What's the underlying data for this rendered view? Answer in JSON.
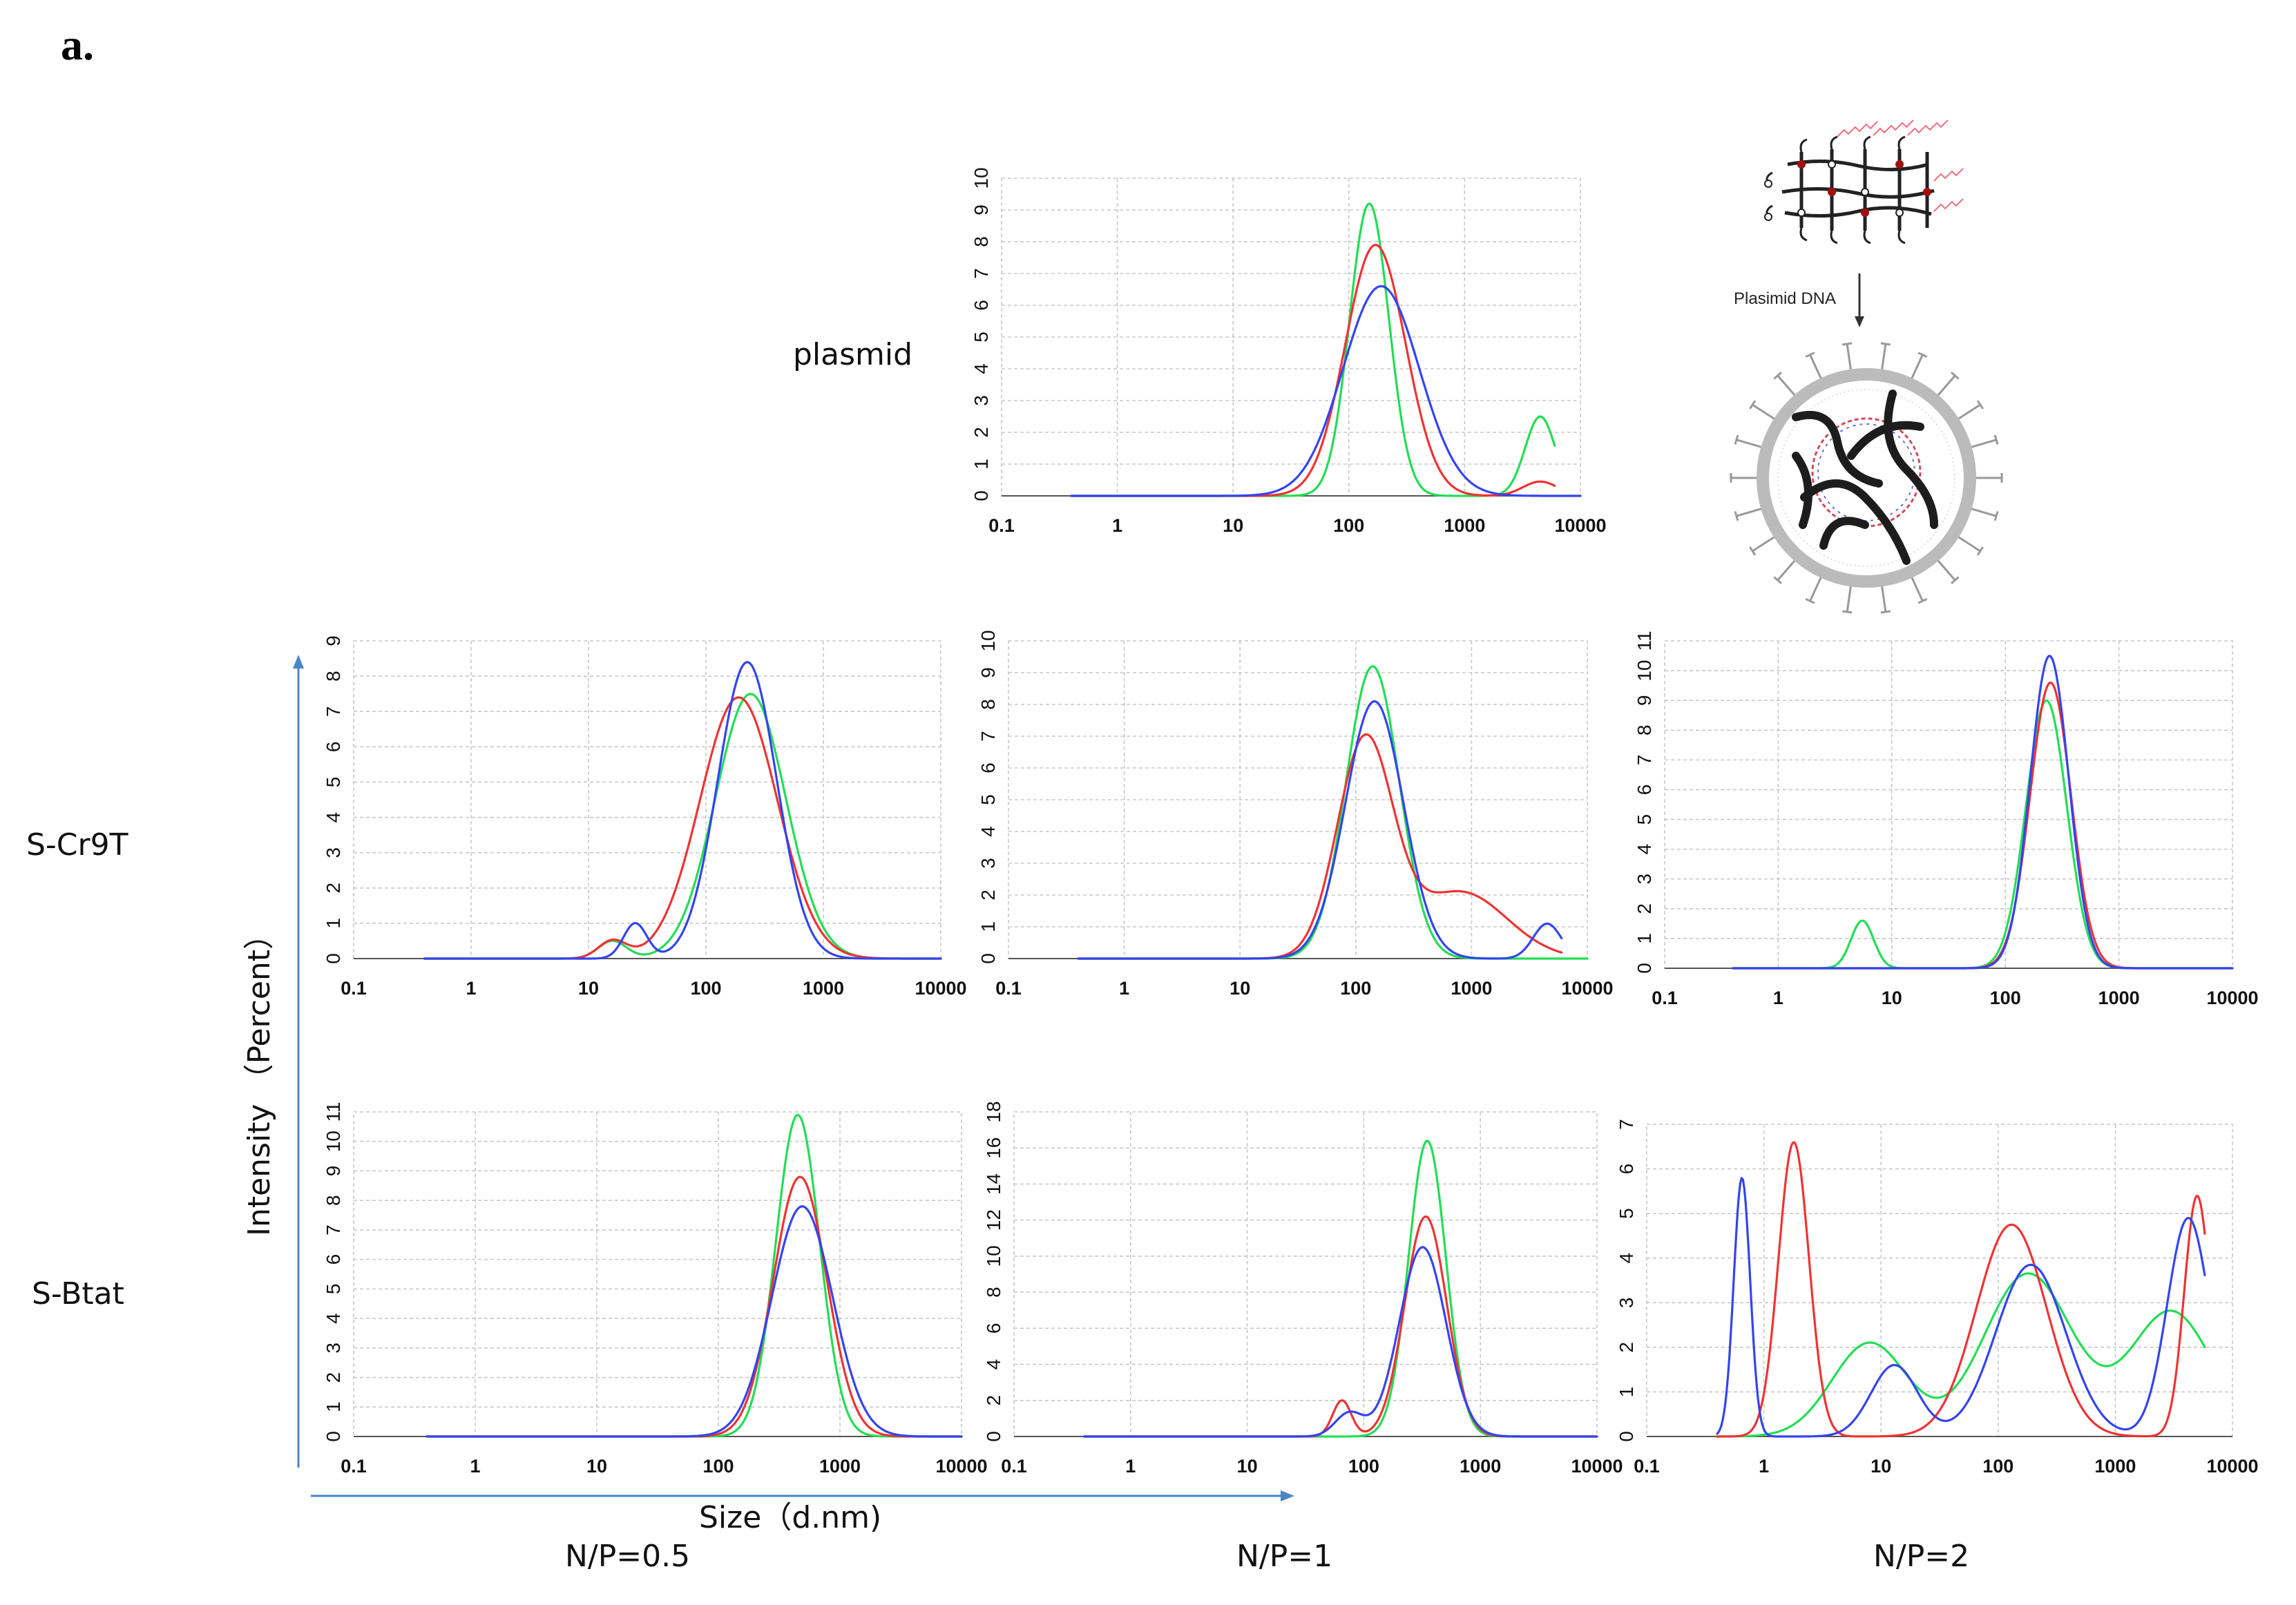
{
  "figure": {
    "panel_letter": "a.",
    "y_axis_title": "Intensity （Percent）",
    "x_axis_title": "Size（d.nm)",
    "row_labels": [
      "plasmid",
      "S-Cr9T",
      "S-Btat"
    ],
    "column_labels": [
      "N/P=0.5",
      "N/P=1",
      "N/P=2"
    ],
    "schematic_label": "Plasimid DNA",
    "series_colors": {
      "green": "#22dd55",
      "red": "#ee3333",
      "blue": "#3344ee"
    }
  },
  "chart_data": [
    {
      "type": "line",
      "name": "plasmid",
      "x_scale": "log",
      "x_ticks": [
        "0.1",
        "1",
        "10",
        "100",
        "1000",
        "10000"
      ],
      "ylim": [
        0,
        10
      ],
      "y_ticks": [
        "0",
        "1",
        "2",
        "3",
        "4",
        "5",
        "6",
        "7",
        "8",
        "9",
        "10"
      ],
      "series": [
        {
          "name": "green",
          "color": "#22dd55",
          "peaks": [
            {
              "center": 150,
              "height": 9.2,
              "sigma": 0.17
            },
            {
              "center": 4500,
              "height": 2.5,
              "sigma": 0.13
            }
          ],
          "x_range": [
            0.4,
            6000
          ]
        },
        {
          "name": "red",
          "color": "#ee3333",
          "peaks": [
            {
              "center": 170,
              "height": 7.9,
              "sigma": 0.26
            },
            {
              "center": 4500,
              "height": 0.45,
              "sigma": 0.15
            }
          ],
          "x_range": [
            0.4,
            6000
          ]
        },
        {
          "name": "blue",
          "color": "#3344ee",
          "peaks": [
            {
              "center": 190,
              "height": 6.6,
              "sigma": 0.33
            }
          ],
          "x_range": [
            0.4,
            10000
          ]
        }
      ]
    },
    {
      "type": "line",
      "name": "S-Cr9T N/P=0.5",
      "x_scale": "log",
      "x_ticks": [
        "0.1",
        "1",
        "10",
        "100",
        "1000",
        "10000"
      ],
      "ylim": [
        0,
        9
      ],
      "y_ticks": [
        "0",
        "1",
        "2",
        "3",
        "4",
        "5",
        "6",
        "7",
        "8",
        "9"
      ],
      "series": [
        {
          "name": "green",
          "color": "#22dd55",
          "peaks": [
            {
              "center": 16,
              "height": 0.5,
              "sigma": 0.12
            },
            {
              "center": 240,
              "height": 7.5,
              "sigma": 0.3
            }
          ],
          "x_range": [
            0.4,
            10000
          ]
        },
        {
          "name": "red",
          "color": "#ee3333",
          "peaks": [
            {
              "center": 16,
              "height": 0.5,
              "sigma": 0.12
            },
            {
              "center": 190,
              "height": 7.4,
              "sigma": 0.33
            }
          ],
          "x_range": [
            0.4,
            10000
          ]
        },
        {
          "name": "blue",
          "color": "#3344ee",
          "peaks": [
            {
              "center": 25,
              "height": 1.0,
              "sigma": 0.1
            },
            {
              "center": 225,
              "height": 8.4,
              "sigma": 0.25
            }
          ],
          "x_range": [
            0.4,
            10000
          ]
        }
      ]
    },
    {
      "type": "line",
      "name": "S-Cr9T N/P=1",
      "x_scale": "log",
      "x_ticks": [
        "0.1",
        "1",
        "10",
        "100",
        "1000",
        "10000"
      ],
      "ylim": [
        0,
        10
      ],
      "y_ticks": [
        "0",
        "1",
        "2",
        "3",
        "4",
        "5",
        "6",
        "7",
        "8",
        "9",
        "10"
      ],
      "series": [
        {
          "name": "green",
          "color": "#22dd55",
          "peaks": [
            {
              "center": 140,
              "height": 9.2,
              "sigma": 0.23
            }
          ],
          "x_range": [
            0.4,
            10000
          ]
        },
        {
          "name": "red",
          "color": "#ee3333",
          "peaks": [
            {
              "center": 120,
              "height": 6.8,
              "sigma": 0.24
            },
            {
              "center": 800,
              "height": 2.1,
              "sigma": 0.4
            }
          ],
          "x_range": [
            0.4,
            6000
          ]
        },
        {
          "name": "blue",
          "color": "#3344ee",
          "peaks": [
            {
              "center": 145,
              "height": 8.1,
              "sigma": 0.25
            },
            {
              "center": 4500,
              "height": 1.1,
              "sigma": 0.12
            }
          ],
          "x_range": [
            0.4,
            6000
          ]
        }
      ]
    },
    {
      "type": "line",
      "name": "S-Cr9T N/P=2",
      "x_scale": "log",
      "x_ticks": [
        "0.1",
        "1",
        "10",
        "100",
        "1000",
        "10000"
      ],
      "ylim": [
        0,
        11
      ],
      "y_ticks": [
        "0",
        "1",
        "2",
        "3",
        "4",
        "5",
        "6",
        "7",
        "8",
        "9",
        "10",
        "11"
      ],
      "series": [
        {
          "name": "green",
          "color": "#22dd55",
          "peaks": [
            {
              "center": 5.5,
              "height": 1.6,
              "sigma": 0.1
            },
            {
              "center": 230,
              "height": 9.0,
              "sigma": 0.18
            }
          ],
          "x_range": [
            0.4,
            10000
          ]
        },
        {
          "name": "red",
          "color": "#ee3333",
          "peaks": [
            {
              "center": 250,
              "height": 9.6,
              "sigma": 0.18
            }
          ],
          "x_range": [
            0.4,
            10000
          ]
        },
        {
          "name": "blue",
          "color": "#3344ee",
          "peaks": [
            {
              "center": 245,
              "height": 10.5,
              "sigma": 0.17
            }
          ],
          "x_range": [
            0.4,
            10000
          ]
        }
      ]
    },
    {
      "type": "line",
      "name": "S-Btat N/P=0.5",
      "x_scale": "log",
      "x_ticks": [
        "0.1",
        "1",
        "10",
        "100",
        "1000",
        "10000"
      ],
      "ylim": [
        0,
        11
      ],
      "y_ticks": [
        "0",
        "1",
        "2",
        "3",
        "4",
        "5",
        "6",
        "7",
        "8",
        "9",
        "10",
        "11"
      ],
      "series": [
        {
          "name": "green",
          "color": "#22dd55",
          "peaks": [
            {
              "center": 450,
              "height": 10.9,
              "sigma": 0.18
            }
          ],
          "x_range": [
            0.4,
            10000
          ]
        },
        {
          "name": "red",
          "color": "#ee3333",
          "peaks": [
            {
              "center": 470,
              "height": 8.8,
              "sigma": 0.22
            }
          ],
          "x_range": [
            0.4,
            10000
          ]
        },
        {
          "name": "blue",
          "color": "#3344ee",
          "peaks": [
            {
              "center": 490,
              "height": 7.8,
              "sigma": 0.25
            }
          ],
          "x_range": [
            0.4,
            10000
          ]
        }
      ]
    },
    {
      "type": "line",
      "name": "S-Btat N/P=1",
      "x_scale": "log",
      "x_ticks": [
        "0.1",
        "1",
        "10",
        "100",
        "1000",
        "10000"
      ],
      "ylim": [
        0,
        18
      ],
      "y_ticks": [
        "0",
        "2",
        "4",
        "6",
        "8",
        "10",
        "12",
        "14",
        "16",
        "18"
      ],
      "series": [
        {
          "name": "green",
          "color": "#22dd55",
          "peaks": [
            {
              "center": 350,
              "height": 16.4,
              "sigma": 0.16
            }
          ],
          "x_range": [
            0.4,
            10000
          ]
        },
        {
          "name": "red",
          "color": "#ee3333",
          "peaks": [
            {
              "center": 65,
              "height": 2.0,
              "sigma": 0.08
            },
            {
              "center": 340,
              "height": 12.2,
              "sigma": 0.18
            }
          ],
          "x_range": [
            0.4,
            10000
          ]
        },
        {
          "name": "blue",
          "color": "#3344ee",
          "peaks": [
            {
              "center": 75,
              "height": 1.3,
              "sigma": 0.12
            },
            {
              "center": 320,
              "height": 10.5,
              "sigma": 0.2
            }
          ],
          "x_range": [
            0.4,
            10000
          ]
        }
      ]
    },
    {
      "type": "line",
      "name": "S-Btat N/P=2",
      "x_scale": "log",
      "x_ticks": [
        "0.1",
        "1",
        "10",
        "100",
        "1000",
        "10000"
      ],
      "ylim": [
        0,
        7
      ],
      "y_ticks": [
        "0",
        "1",
        "2",
        "3",
        "4",
        "5",
        "6",
        "7"
      ],
      "series": [
        {
          "name": "green",
          "color": "#22dd55",
          "peaks": [
            {
              "center": 8,
              "height": 2.1,
              "sigma": 0.32
            },
            {
              "center": 180,
              "height": 3.65,
              "sigma": 0.38
            },
            {
              "center": 3000,
              "height": 2.8,
              "sigma": 0.35
            }
          ],
          "x_range": [
            0.4,
            5800
          ]
        },
        {
          "name": "red",
          "color": "#ee3333",
          "peaks": [
            {
              "center": 1.8,
              "height": 6.6,
              "sigma": 0.13
            },
            {
              "center": 130,
              "height": 4.75,
              "sigma": 0.3
            },
            {
              "center": 5000,
              "height": 5.4,
              "sigma": 0.11
            }
          ],
          "x_range": [
            0.4,
            5800
          ]
        },
        {
          "name": "blue",
          "color": "#3344ee",
          "peaks": [
            {
              "center": 0.65,
              "height": 5.8,
              "sigma": 0.07
            },
            {
              "center": 13,
              "height": 1.6,
              "sigma": 0.2
            },
            {
              "center": 190,
              "height": 3.85,
              "sigma": 0.3
            },
            {
              "center": 4200,
              "height": 4.9,
              "sigma": 0.18
            }
          ],
          "x_range": [
            0.4,
            5800
          ]
        }
      ]
    }
  ]
}
